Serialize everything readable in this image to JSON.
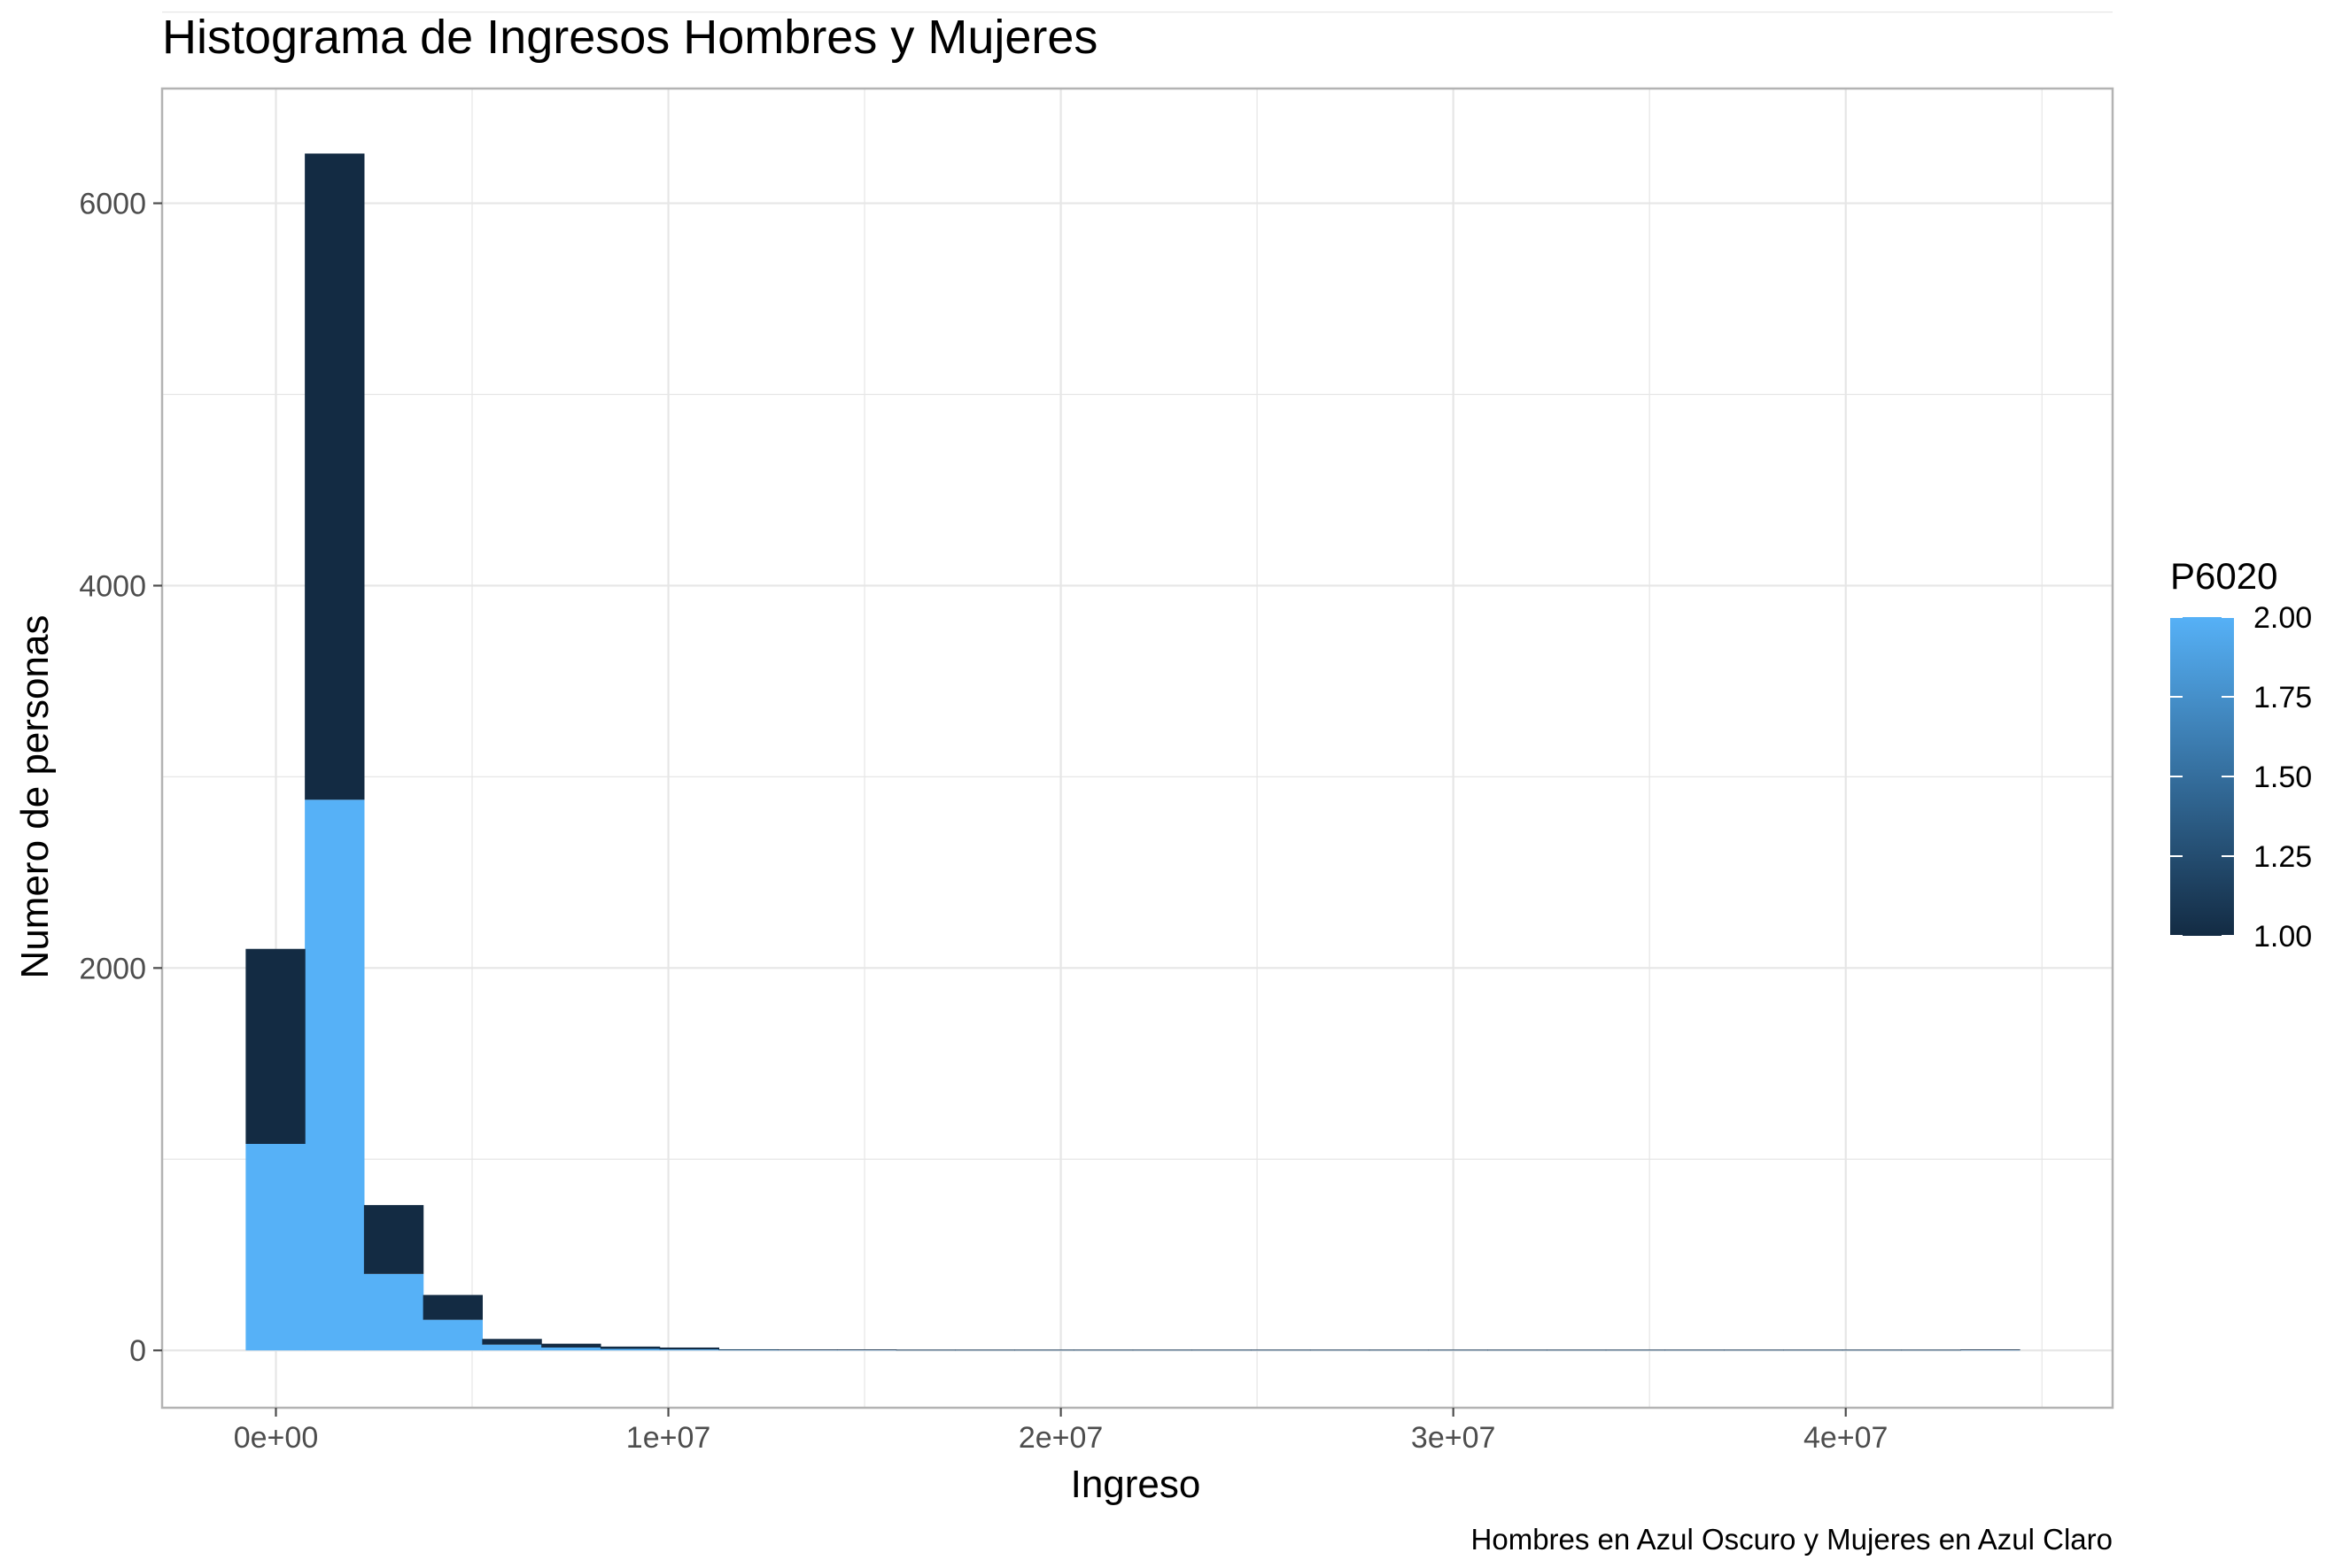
{
  "chart_data": {
    "type": "bar",
    "title": "Histograma de Ingresos Hombres y Mujeres",
    "xlabel": "Ingreso",
    "ylabel": "Numero de personas",
    "caption": "Hombres en Azul Oscuro  y Mujeres en Azul Claro",
    "xlim": [
      -2900000,
      46800000
    ],
    "ylim": [
      -300,
      6600
    ],
    "x_ticks": [
      {
        "value": 0,
        "label": "0e+00"
      },
      {
        "value": 10000000,
        "label": "1e+07"
      },
      {
        "value": 20000000,
        "label": "2e+07"
      },
      {
        "value": 30000000,
        "label": "3e+07"
      },
      {
        "value": 40000000,
        "label": "4e+07"
      }
    ],
    "y_ticks": [
      {
        "value": 0,
        "label": "0"
      },
      {
        "value": 2000,
        "label": "2000"
      },
      {
        "value": 4000,
        "label": "4000"
      },
      {
        "value": 6000,
        "label": "6000"
      }
    ],
    "grid": true,
    "bins": {
      "x_start": -770000,
      "x_end": 44430000,
      "count": 30,
      "series": [
        {
          "name": "Mujeres",
          "color": "#56b1f7",
          "values": [
            1080,
            2880,
            400,
            160,
            30,
            15,
            8,
            5,
            2,
            1,
            1,
            0,
            0,
            0,
            0,
            0,
            0,
            0,
            0,
            0,
            0,
            0,
            0,
            0,
            0,
            0,
            0,
            0,
            0,
            1
          ]
        },
        {
          "name": "Hombres",
          "color": "#132b43",
          "values": [
            1020,
            3380,
            360,
            130,
            30,
            20,
            12,
            10,
            3,
            2,
            1,
            1,
            0,
            0,
            0,
            0,
            0,
            0,
            0,
            0,
            0,
            0,
            0,
            0,
            0,
            0,
            0,
            0,
            0,
            0
          ]
        }
      ]
    },
    "legend": {
      "title": "P6020",
      "placement": "right",
      "type": "colorbar",
      "low_color": "#132b43",
      "high_color": "#56b1f7",
      "range": [
        1.0,
        2.0
      ],
      "labels": [
        "1.00",
        "1.25",
        "1.50",
        "1.75",
        "2.00"
      ]
    },
    "colors": {
      "panel_border": "#b3b3b3",
      "grid": "#e6e6e6",
      "tick": "#4d4d4d"
    }
  }
}
